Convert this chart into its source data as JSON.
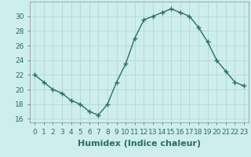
{
  "x": [
    0,
    1,
    2,
    3,
    4,
    5,
    6,
    7,
    8,
    9,
    10,
    11,
    12,
    13,
    14,
    15,
    16,
    17,
    18,
    19,
    20,
    21,
    22,
    23
  ],
  "y": [
    22,
    21,
    20,
    19.5,
    18.5,
    18,
    17,
    16.5,
    18,
    21,
    23.5,
    27,
    29.5,
    30,
    30.5,
    31,
    30.5,
    30,
    28.5,
    26.5,
    24,
    22.5,
    21,
    20.5
  ],
  "line_color": "#2a6e65",
  "marker": "+",
  "marker_size": 4,
  "marker_color": "#2a6e65",
  "bg_color": "#ceeeed",
  "grid_color": "#aed4d0",
  "xlabel": "Humidex (Indice chaleur)",
  "xlim": [
    -0.5,
    23.5
  ],
  "ylim": [
    15.5,
    32
  ],
  "yticks": [
    16,
    18,
    20,
    22,
    24,
    26,
    28,
    30
  ],
  "xtick_labels": [
    "0",
    "1",
    "2",
    "3",
    "4",
    "5",
    "6",
    "7",
    "8",
    "9",
    "10",
    "11",
    "12",
    "13",
    "14",
    "15",
    "16",
    "17",
    "18",
    "19",
    "20",
    "21",
    "22",
    "23"
  ],
  "xlabel_fontsize": 8,
  "tick_fontsize": 6.5,
  "line_width": 1.0
}
